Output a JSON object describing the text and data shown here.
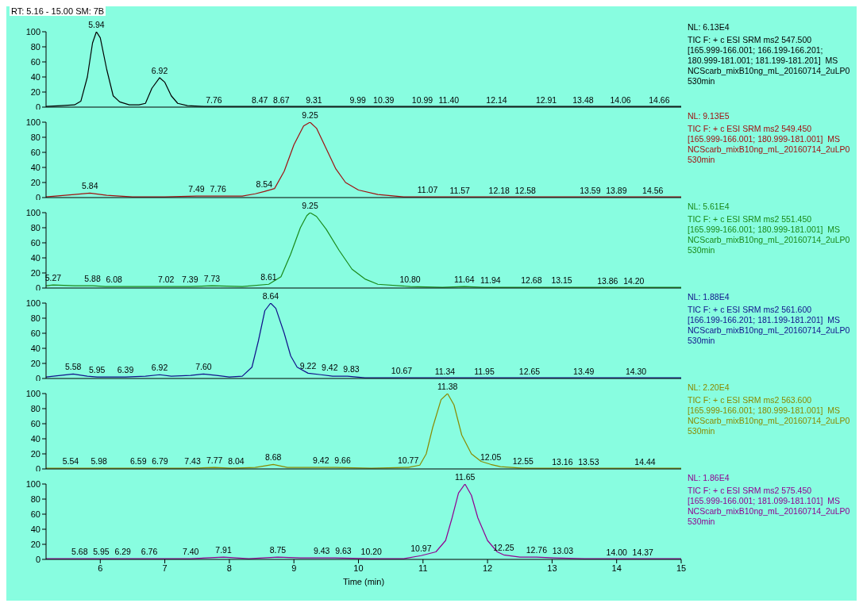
{
  "chart_data": [
    {
      "type": "line",
      "title": "RT: 5.16 - 15.00   SM: 7B",
      "xlim": [
        5.16,
        15
      ],
      "xticks": [
        6,
        7,
        8,
        9,
        10,
        11,
        12,
        13,
        14,
        15
      ],
      "ylim": [
        0,
        100
      ],
      "yticks": [
        0,
        20,
        40,
        60,
        80,
        100
      ],
      "tick_labels": "y",
      "x": [
        5.16,
        5.4,
        5.6,
        5.7,
        5.8,
        5.88,
        5.94,
        6.0,
        6.1,
        6.2,
        6.3,
        6.45,
        6.6,
        6.7,
        6.8,
        6.92,
        7.0,
        7.1,
        7.2,
        7.35,
        7.6,
        8,
        9,
        10,
        11,
        12,
        13,
        14,
        15
      ],
      "series": [
        {
          "color": "#000000",
          "values": [
            1,
            2,
            3,
            8,
            40,
            85,
            100,
            92,
            50,
            15,
            7,
            3,
            3,
            5,
            25,
            39,
            33,
            15,
            5,
            2,
            1,
            1,
            1,
            1,
            1,
            1,
            1,
            1,
            1
          ]
        }
      ],
      "annotations": [
        {
          "text": "5.94",
          "x": 5.94,
          "y": 100
        },
        {
          "text": "6.92",
          "x": 6.92,
          "y": 39
        },
        {
          "text": "7.76",
          "x": 7.76,
          "y": 0.5
        },
        {
          "text": "8.47",
          "x": 8.47,
          "y": 0.3
        },
        {
          "text": "8.67",
          "x": 8.67,
          "y": 0.3
        },
        {
          "text": "9.31",
          "x": 9.31,
          "y": 0.3
        },
        {
          "text": "9.99",
          "x": 9.99,
          "y": 0.3
        },
        {
          "text": "10.39",
          "x": 10.39,
          "y": 0.3
        },
        {
          "text": "10.99",
          "x": 10.99,
          "y": 0.2
        },
        {
          "text": "11.40",
          "x": 11.4,
          "y": 0.2
        },
        {
          "text": "12.14",
          "x": 12.14,
          "y": 0.2
        },
        {
          "text": "12.91",
          "x": 12.91,
          "y": 0.2
        },
        {
          "text": "13.48",
          "x": 13.48,
          "y": 0.2
        },
        {
          "text": "14.06",
          "x": 14.06,
          "y": 0.2
        },
        {
          "text": "14.66",
          "x": 14.66,
          "y": 0.2
        },
        "NL: 6.13E4",
        "TIC F: + c ESI SRM ms2 547.500",
        "[165.999-166.001; 166.199-166.201;",
        "180.999-181.001; 181.199-181.201]  MS",
        "NCScarb_mixB10ng_mL_20160714_2uLP0",
        "530min"
      ]
    },
    {
      "type": "line",
      "xlim": [
        5.16,
        15
      ],
      "xticks": [
        6,
        7,
        8,
        9,
        10,
        11,
        12,
        13,
        14,
        15
      ],
      "ylim": [
        0,
        100
      ],
      "yticks": [
        0,
        20,
        40,
        60,
        80,
        100
      ],
      "tick_labels": "y",
      "x": [
        5.16,
        5.6,
        5.84,
        6.1,
        6.5,
        7,
        7.49,
        7.76,
        8.2,
        8.4,
        8.54,
        8.7,
        8.85,
        9.0,
        9.15,
        9.25,
        9.35,
        9.5,
        9.65,
        9.8,
        10,
        10.3,
        10.7,
        11.07,
        11.5,
        12,
        13,
        14,
        15
      ],
      "series": [
        {
          "color": "#a01010",
          "values": [
            1,
            4,
            6,
            3,
            1,
            1,
            2,
            2,
            2,
            5,
            8,
            12,
            35,
            70,
            95,
            100,
            92,
            65,
            38,
            20,
            10,
            4,
            1,
            1,
            1,
            1,
            1,
            1,
            1
          ]
        }
      ],
      "annotations": [
        {
          "text": "5.84",
          "x": 5.84,
          "y": 6
        },
        {
          "text": "7.49",
          "x": 7.49,
          "y": 2
        },
        {
          "text": "7.76",
          "x": 7.76,
          "y": 2
        },
        {
          "text": "8.54",
          "x": 8.54,
          "y": 8
        },
        {
          "text": "9.25",
          "x": 9.25,
          "y": 100
        },
        {
          "text": "11.07",
          "x": 11.07,
          "y": 1
        },
        {
          "text": "11.57",
          "x": 11.57,
          "y": 0.5
        },
        {
          "text": "12.18",
          "x": 12.18,
          "y": 0.5
        },
        {
          "text": "12.58",
          "x": 12.58,
          "y": 0.5
        },
        {
          "text": "13.59",
          "x": 13.59,
          "y": 0.3
        },
        {
          "text": "13.89",
          "x": 13.89,
          "y": 0.3
        },
        {
          "text": "14.56",
          "x": 14.56,
          "y": 0.3
        },
        "NL: 9.13E5",
        "TIC F: + c ESI SRM ms2 549.450",
        "[165.999-166.001; 180.999-181.001]  MS",
        "NCScarb_mixB10ng_mL_20160714_2uLP0",
        "530min"
      ]
    },
    {
      "type": "line",
      "xlim": [
        5.16,
        15
      ],
      "xticks": [
        6,
        7,
        8,
        9,
        10,
        11,
        12,
        13,
        14,
        15
      ],
      "ylim": [
        0,
        100
      ],
      "yticks": [
        0,
        20,
        40,
        60,
        80,
        100
      ],
      "tick_labels": "y",
      "x": [
        5.16,
        5.27,
        5.6,
        5.88,
        6.08,
        6.5,
        7.02,
        7.39,
        7.73,
        8.2,
        8.61,
        8.8,
        8.95,
        9.1,
        9.2,
        9.25,
        9.35,
        9.5,
        9.7,
        9.9,
        10.1,
        10.3,
        10.8,
        11.3,
        11.64,
        11.94,
        12.68,
        13.15,
        13.86,
        14.2,
        15
      ],
      "series": [
        {
          "color": "#1a8a1a",
          "values": [
            3,
            4,
            3,
            3,
            2,
            2,
            2,
            2,
            3,
            2,
            5,
            15,
            45,
            80,
            96,
            100,
            95,
            78,
            50,
            25,
            12,
            5,
            2,
            1,
            2,
            1,
            1,
            1,
            1,
            1,
            1
          ]
        }
      ],
      "annotations": [
        {
          "text": "5.27",
          "x": 5.27,
          "y": 4
        },
        {
          "text": "5.88",
          "x": 5.88,
          "y": 3
        },
        {
          "text": "6.08",
          "x": 6.08,
          "y": 2
        },
        {
          "text": "7.02",
          "x": 7.02,
          "y": 2
        },
        {
          "text": "7.39",
          "x": 7.39,
          "y": 2
        },
        {
          "text": "7.73",
          "x": 7.73,
          "y": 3
        },
        {
          "text": "8.61",
          "x": 8.61,
          "y": 5
        },
        {
          "text": "9.25",
          "x": 9.25,
          "y": 100
        },
        {
          "text": "10.80",
          "x": 10.8,
          "y": 2
        },
        {
          "text": "11.64",
          "x": 11.64,
          "y": 2
        },
        {
          "text": "11.94",
          "x": 11.94,
          "y": 1
        },
        {
          "text": "12.68",
          "x": 12.68,
          "y": 1
        },
        {
          "text": "13.15",
          "x": 13.15,
          "y": 1
        },
        {
          "text": "13.86",
          "x": 13.86,
          "y": 0.5
        },
        {
          "text": "14.20",
          "x": 14.2,
          "y": 0.5
        },
        "NL: 5.61E4",
        "TIC F: + c ESI SRM ms2 551.450",
        "[165.999-166.001; 180.999-181.001]  MS",
        "NCScarb_mixB10ng_mL_20160714_2uLP0",
        "530min"
      ]
    },
    {
      "type": "line",
      "xlim": [
        5.16,
        15
      ],
      "xticks": [
        6,
        7,
        8,
        9,
        10,
        11,
        12,
        13,
        14,
        15
      ],
      "ylim": [
        0,
        100
      ],
      "yticks": [
        0,
        20,
        40,
        60,
        80,
        100
      ],
      "tick_labels": "y",
      "x": [
        5.16,
        5.58,
        5.8,
        5.95,
        6.39,
        6.7,
        6.92,
        7.1,
        7.4,
        7.6,
        7.8,
        8.0,
        8.2,
        8.35,
        8.45,
        8.55,
        8.64,
        8.72,
        8.85,
        8.95,
        9.05,
        9.22,
        9.42,
        9.6,
        9.83,
        10.1,
        10.67,
        11.34,
        11.95,
        12.65,
        13.49,
        14.3,
        15
      ],
      "series": [
        {
          "color": "#10108a",
          "values": [
            2,
            6,
            3,
            2,
            2,
            3,
            5,
            3,
            4,
            6,
            4,
            2,
            3,
            15,
            50,
            90,
            100,
            93,
            60,
            30,
            15,
            7,
            5,
            3,
            3,
            1,
            1,
            1,
            1,
            1,
            1,
            1,
            1
          ]
        }
      ],
      "annotations": [
        {
          "text": "5.58",
          "x": 5.58,
          "y": 6
        },
        {
          "text": "5.95",
          "x": 5.95,
          "y": 2
        },
        {
          "text": "6.39",
          "x": 6.39,
          "y": 2
        },
        {
          "text": "6.92",
          "x": 6.92,
          "y": 5
        },
        {
          "text": "7.60",
          "x": 7.6,
          "y": 6
        },
        {
          "text": "8.64",
          "x": 8.64,
          "y": 100
        },
        {
          "text": "9.22",
          "x": 9.22,
          "y": 7
        },
        {
          "text": "9.42",
          "x": 9.42,
          "y": 5
        },
        {
          "text": "9.83",
          "x": 9.83,
          "y": 3
        },
        {
          "text": "10.67",
          "x": 10.67,
          "y": 1
        },
        {
          "text": "11.34",
          "x": 11.34,
          "y": 0.5
        },
        {
          "text": "11.95",
          "x": 11.95,
          "y": 0.5
        },
        {
          "text": "12.65",
          "x": 12.65,
          "y": 0.5
        },
        {
          "text": "13.49",
          "x": 13.49,
          "y": 0.3
        },
        {
          "text": "14.30",
          "x": 14.3,
          "y": 0.3
        },
        "NL: 1.88E4",
        "TIC F: + c ESI SRM ms2 561.600",
        "[166.199-166.201; 181.199-181.201]  MS",
        "NCScarb_mixB10ng_mL_20160714_2uLP0",
        "530min"
      ]
    },
    {
      "type": "line",
      "xlim": [
        5.16,
        15
      ],
      "xticks": [
        6,
        7,
        8,
        9,
        10,
        11,
        12,
        13,
        14,
        15
      ],
      "ylim": [
        0,
        100
      ],
      "yticks": [
        0,
        20,
        40,
        60,
        80,
        100
      ],
      "tick_labels": "y",
      "x": [
        5.16,
        5.54,
        5.98,
        6.59,
        6.79,
        7.43,
        7.77,
        8.04,
        8.4,
        8.68,
        8.9,
        9.42,
        9.66,
        10.2,
        10.77,
        10.95,
        11.05,
        11.15,
        11.28,
        11.38,
        11.48,
        11.6,
        11.75,
        11.9,
        12.05,
        12.2,
        12.55,
        13.16,
        13.53,
        14.44,
        15
      ],
      "series": [
        {
          "color": "#8a8a00",
          "values": [
            1,
            1,
            1,
            1,
            1,
            1,
            2,
            1,
            2,
            6,
            2,
            2,
            2,
            1,
            2,
            5,
            20,
            55,
            92,
            100,
            85,
            45,
            20,
            10,
            6,
            3,
            1,
            1,
            1,
            1,
            1
          ]
        }
      ],
      "annotations": [
        {
          "text": "5.54",
          "x": 5.54,
          "y": 1
        },
        {
          "text": "5.98",
          "x": 5.98,
          "y": 1
        },
        {
          "text": "6.59",
          "x": 6.59,
          "y": 1
        },
        {
          "text": "6.79",
          "x": 6.79,
          "y": 1
        },
        {
          "text": "7.43",
          "x": 7.43,
          "y": 1
        },
        {
          "text": "7.77",
          "x": 7.77,
          "y": 2
        },
        {
          "text": "8.04",
          "x": 8.04,
          "y": 1
        },
        {
          "text": "8.68",
          "x": 8.68,
          "y": 6
        },
        {
          "text": "9.42",
          "x": 9.42,
          "y": 2
        },
        {
          "text": "9.66",
          "x": 9.66,
          "y": 2
        },
        {
          "text": "10.77",
          "x": 10.77,
          "y": 2
        },
        {
          "text": "11.38",
          "x": 11.38,
          "y": 100
        },
        {
          "text": "12.05",
          "x": 12.05,
          "y": 6
        },
        {
          "text": "12.55",
          "x": 12.55,
          "y": 1
        },
        {
          "text": "13.16",
          "x": 13.16,
          "y": 0.5
        },
        {
          "text": "13.53",
          "x": 13.53,
          "y": 0.5
        },
        {
          "text": "14.44",
          "x": 14.44,
          "y": 0.3
        },
        "NL: 2.20E4",
        "TIC F: + c ESI SRM ms2 563.600",
        "[165.999-166.001; 180.999-181.001]  MS",
        "NCScarb_mixB10ng_mL_20160714_2uLP0",
        "530min"
      ]
    },
    {
      "type": "line",
      "xlabel": "Time (min)",
      "xlim": [
        5.16,
        15
      ],
      "xticks": [
        6,
        7,
        8,
        9,
        10,
        11,
        12,
        13,
        14,
        15
      ],
      "ylim": [
        0,
        100
      ],
      "yticks": [
        0,
        20,
        40,
        60,
        80,
        100
      ],
      "x": [
        5.16,
        5.68,
        5.95,
        6.29,
        6.76,
        7.4,
        7.91,
        8.3,
        8.75,
        9.1,
        9.43,
        9.63,
        10.2,
        10.7,
        10.97,
        11.2,
        11.35,
        11.45,
        11.55,
        11.65,
        11.75,
        11.85,
        12.0,
        12.15,
        12.25,
        12.5,
        12.76,
        13.03,
        13.5,
        14,
        14.37,
        15
      ],
      "series": [
        {
          "color": "#900090",
          "values": [
            1,
            1,
            1,
            1,
            1,
            1,
            3,
            1,
            3,
            2,
            2,
            2,
            1,
            1,
            5,
            10,
            25,
            55,
            88,
            100,
            85,
            55,
            25,
            10,
            6,
            3,
            3,
            2,
            1,
            1,
            1,
            1
          ]
        }
      ],
      "annotations": [
        {
          "text": "5.68",
          "x": 5.68,
          "y": 1
        },
        {
          "text": "5.95",
          "x": 5.95,
          "y": 1
        },
        {
          "text": "6.29",
          "x": 6.29,
          "y": 1
        },
        {
          "text": "6.76",
          "x": 6.76,
          "y": 1
        },
        {
          "text": "7.40",
          "x": 7.4,
          "y": 1
        },
        {
          "text": "7.91",
          "x": 7.91,
          "y": 3
        },
        {
          "text": "8.75",
          "x": 8.75,
          "y": 3
        },
        {
          "text": "9.43",
          "x": 9.43,
          "y": 2
        },
        {
          "text": "9.63",
          "x": 9.63,
          "y": 2
        },
        {
          "text": "10.20",
          "x": 10.2,
          "y": 1
        },
        {
          "text": "10.97",
          "x": 10.97,
          "y": 5
        },
        {
          "text": "11.65",
          "x": 11.65,
          "y": 100
        },
        {
          "text": "12.25",
          "x": 12.25,
          "y": 6
        },
        {
          "text": "12.76",
          "x": 12.76,
          "y": 3
        },
        {
          "text": "13.03",
          "x": 13.03,
          "y": 2
        },
        {
          "text": "14.00",
          "x": 14,
          "y": 0.5
        },
        {
          "text": "14.37",
          "x": 14.37,
          "y": 0.5
        },
        "NL: 1.86E4",
        "TIC F: + c ESI SRM ms2 575.450",
        "[165.999-166.001; 181.099-181.101]  MS",
        "NCScarb_mixB10ng_mL_20160714_2uLP0",
        "530min"
      ]
    }
  ]
}
